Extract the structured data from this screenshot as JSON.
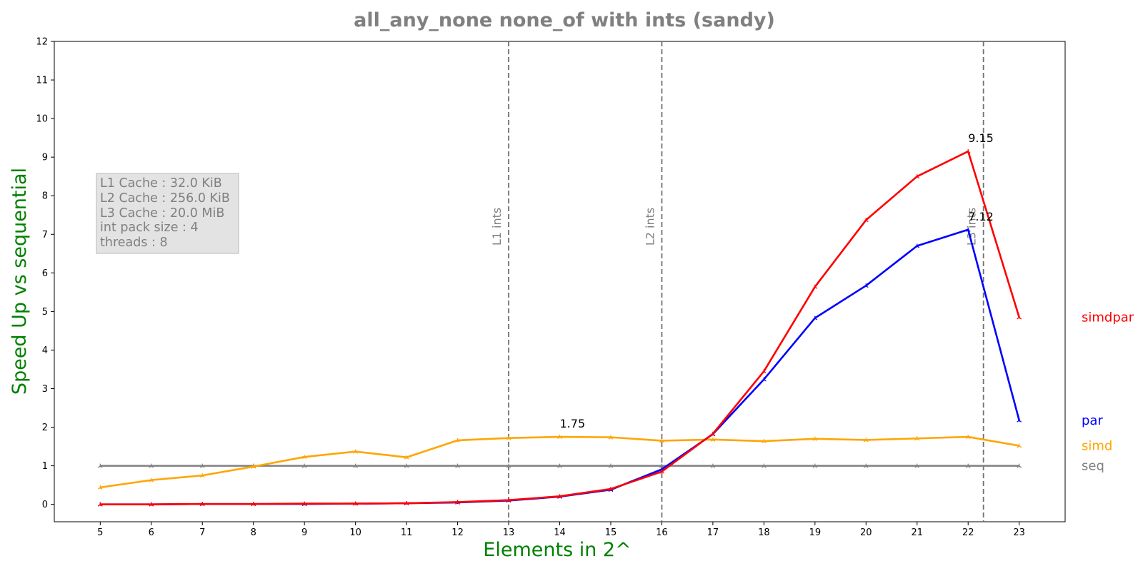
{
  "chart_data": {
    "type": "line",
    "title": "all_any_none none_of with ints  (sandy)",
    "xlabel": "Elements in 2^",
    "ylabel": "Speed Up vs sequential",
    "x": [
      5,
      6,
      7,
      8,
      9,
      10,
      11,
      12,
      13,
      14,
      15,
      16,
      17,
      18,
      19,
      20,
      21,
      22,
      23
    ],
    "xlim": [
      4.1,
      23.9
    ],
    "ylim": [
      -0.45,
      12
    ],
    "yticks": [
      0,
      1,
      2,
      3,
      4,
      5,
      6,
      7,
      8,
      9,
      10,
      11,
      12
    ],
    "grid": false,
    "series": [
      {
        "name": "seq",
        "color": "#808080",
        "values": [
          1,
          1,
          1,
          1,
          1,
          1,
          1,
          1,
          1,
          1,
          1,
          1,
          1,
          1,
          1,
          1,
          1,
          1,
          1
        ]
      },
      {
        "name": "simd",
        "color": "#FFA500",
        "values": [
          0.44,
          0.63,
          0.75,
          0.98,
          1.23,
          1.37,
          1.22,
          1.66,
          1.72,
          1.75,
          1.74,
          1.65,
          1.68,
          1.64,
          1.7,
          1.67,
          1.71,
          1.75,
          1.52
        ]
      },
      {
        "name": "par",
        "color": "#0000FF",
        "values": [
          0.0,
          0.0,
          0.01,
          0.01,
          0.01,
          0.02,
          0.03,
          0.05,
          0.1,
          0.2,
          0.38,
          0.91,
          1.82,
          3.24,
          4.83,
          5.67,
          6.7,
          7.12,
          2.18
        ]
      },
      {
        "name": "simdpar",
        "color": "#FF0000",
        "values": [
          0.0,
          0.0,
          0.01,
          0.01,
          0.02,
          0.02,
          0.03,
          0.06,
          0.11,
          0.21,
          0.4,
          0.85,
          1.83,
          3.45,
          5.64,
          7.37,
          8.5,
          9.15,
          4.85
        ]
      }
    ],
    "vlines": [
      {
        "x": 13,
        "label": "L1 ints"
      },
      {
        "x": 16,
        "label": "L2 ints"
      },
      {
        "x": 22.3,
        "label": "L3 ints"
      }
    ],
    "annotations": [
      {
        "x": 14,
        "y": 1.75,
        "text": "1.75"
      },
      {
        "x": 22,
        "y": 9.15,
        "text": "9.15"
      },
      {
        "x": 22,
        "y": 7.12,
        "text": "7.12"
      }
    ],
    "info_box": {
      "lines": [
        "L1 Cache : 32.0 KiB",
        "L2 Cache : 256.0 KiB",
        "L3 Cache : 20.0 MiB",
        "int pack size : 4",
        "threads : 8"
      ]
    },
    "legend_placement": "right-outside"
  }
}
